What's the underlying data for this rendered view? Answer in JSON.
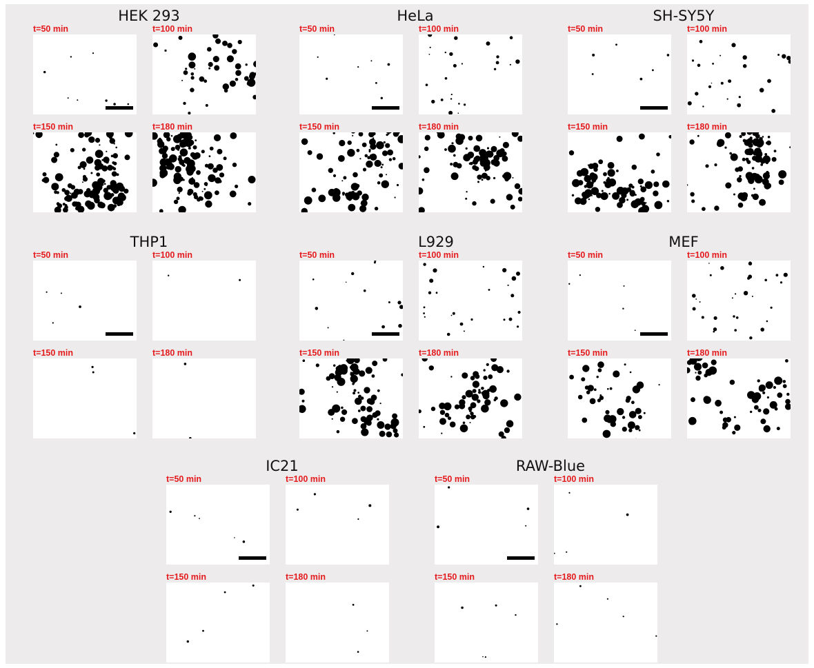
{
  "panels": [
    {
      "title": "HEK 293",
      "frames": [
        "t=50 min",
        "t=100 min",
        "t=150 min",
        "t=180 min"
      ]
    },
    {
      "title": "HeLa",
      "frames": [
        "t=50 min",
        "t=100 min",
        "t=150 min",
        "t=180 min"
      ]
    },
    {
      "title": "SH-SY5Y",
      "frames": [
        "t=50 min",
        "t=100 min",
        "t=150 min",
        "t=180 min"
      ]
    },
    {
      "title": "THP1",
      "frames": [
        "t=50 min",
        "t=100 min",
        "t=150 min",
        "t=180 min"
      ]
    },
    {
      "title": "L929",
      "frames": [
        "t=50 min",
        "t=100 min",
        "t=150 min",
        "t=180 min"
      ]
    },
    {
      "title": "MEF",
      "frames": [
        "t=50 min",
        "t=100 min",
        "t=150 min",
        "t=180 min"
      ]
    },
    {
      "title": "IC21",
      "frames": [
        "t=50 min",
        "t=100 min",
        "t=150 min",
        "t=180 min"
      ]
    },
    {
      "title": "RAW-Blue",
      "frames": [
        "t=50 min",
        "t=100 min",
        "t=150 min",
        "t=180 min"
      ]
    }
  ]
}
